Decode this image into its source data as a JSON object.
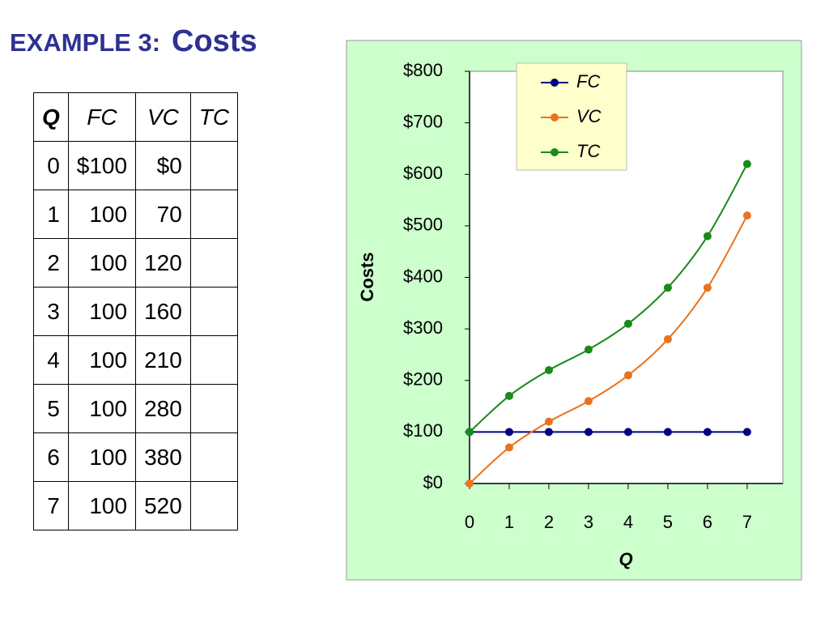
{
  "title": {
    "label": "EXAMPLE 3:",
    "topic": "Costs"
  },
  "table": {
    "header": [
      "Q",
      "FC",
      "VC",
      "TC"
    ],
    "rows": [
      [
        0,
        "$100",
        "$0"
      ],
      [
        1,
        100,
        70
      ],
      [
        2,
        100,
        120
      ],
      [
        3,
        100,
        160
      ],
      [
        4,
        100,
        210
      ],
      [
        5,
        100,
        280
      ],
      [
        6,
        100,
        380
      ],
      [
        7,
        100,
        520
      ]
    ]
  },
  "chart_data": {
    "type": "line",
    "x_label": "Q",
    "y_label": "Costs",
    "x": [
      0,
      1,
      2,
      3,
      4,
      5,
      6,
      7
    ],
    "series": [
      {
        "name": "FC",
        "color": "#000080",
        "values": [
          100,
          100,
          100,
          100,
          100,
          100,
          100,
          100
        ]
      },
      {
        "name": "VC",
        "color": "#e8731f",
        "values": [
          0,
          70,
          120,
          160,
          210,
          280,
          380,
          520
        ]
      },
      {
        "name": "TC",
        "color": "#1a8a1a",
        "values": [
          100,
          170,
          220,
          260,
          310,
          380,
          480,
          620
        ]
      }
    ],
    "xlim": [
      0,
      7.9
    ],
    "xticks": [
      0,
      1,
      2,
      3,
      4,
      5,
      6,
      7
    ],
    "ylim": [
      0,
      800
    ],
    "yticks": [
      {
        "value": 0,
        "label": "$0"
      },
      {
        "value": 100,
        "label": "$100"
      },
      {
        "value": 200,
        "label": "$200"
      },
      {
        "value": 300,
        "label": "$300"
      },
      {
        "value": 400,
        "label": "$400"
      },
      {
        "value": 500,
        "label": "$500"
      },
      {
        "value": 600,
        "label": "$600"
      },
      {
        "value": 700,
        "label": "$700"
      },
      {
        "value": 800,
        "label": "$800"
      }
    ],
    "grid": false,
    "legend": "top"
  }
}
